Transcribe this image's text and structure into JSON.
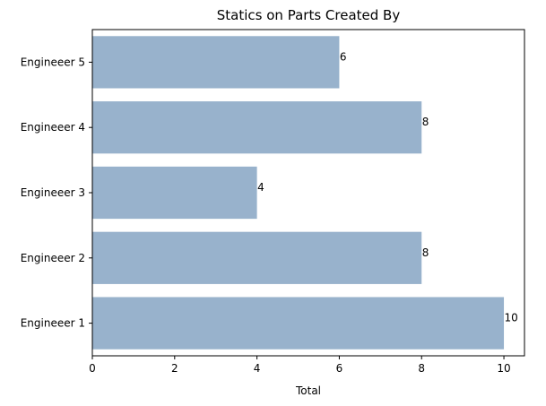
{
  "chart_data": {
    "type": "bar",
    "orientation": "horizontal",
    "title": "Statics on Parts Created By",
    "xlabel": "Total",
    "ylabel": "",
    "categories": [
      "Engineeer 1",
      "Engineeer 2",
      "Engineeer 3",
      "Engineeer 4",
      "Engineeer 5"
    ],
    "values": [
      10,
      8,
      4,
      8,
      6
    ],
    "xlim": [
      0,
      10.5
    ],
    "xticks": [
      "0",
      "2",
      "4",
      "6",
      "8",
      "10"
    ],
    "bar_color": "#98b2cc",
    "grid": false,
    "legend": "none"
  }
}
